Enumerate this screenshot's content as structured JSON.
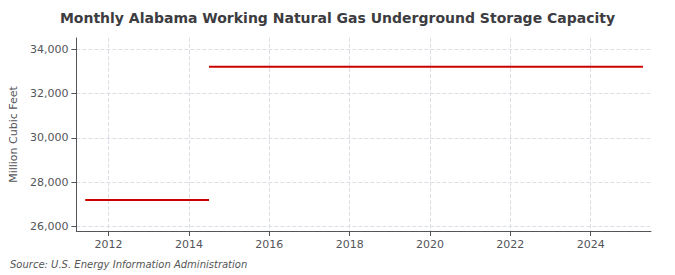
{
  "chart_data": {
    "type": "line",
    "title": "Monthly Alabama Working Natural Gas Underground Storage Capacity",
    "ylabel": "Million Cubic Feet",
    "annotation": "Source: U.S. Energy Information Administration",
    "color": "#cc0000",
    "segments": [
      {
        "x_start": 2011.42,
        "x_end": 2014.5,
        "y": 27200
      },
      {
        "x_start": 2014.5,
        "x_end": 2025.3,
        "y": 33200
      }
    ],
    "xlim": [
      2011.2,
      2025.5
    ],
    "xticks": [
      2012,
      2014,
      2016,
      2018,
      2020,
      2022,
      2024
    ],
    "ylim": [
      25800,
      34500
    ],
    "yticks": [
      {
        "value": 26000,
        "label": "26,000"
      },
      {
        "value": 28000,
        "label": "28,000"
      },
      {
        "value": 30000,
        "label": "30,000"
      },
      {
        "value": 32000,
        "label": "32,000"
      },
      {
        "value": 34000,
        "label": "34,000"
      }
    ],
    "grid": true
  }
}
